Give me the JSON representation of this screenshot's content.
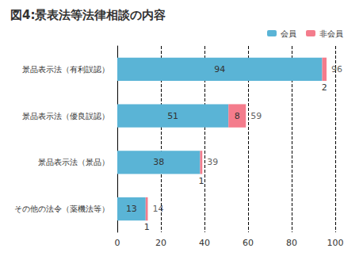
{
  "chart_data": {
    "type": "bar",
    "title": "図4:景表法等法律相談の内容",
    "orientation": "horizontal",
    "stacked": true,
    "categories": [
      "景品表示法（有利誤認）",
      "景品表示法（優良誤認）",
      "景品表示法（景品）",
      "その他の法令（薬機法等）"
    ],
    "series": [
      {
        "name": "会員",
        "color": "#5ab4d6",
        "values": [
          94,
          51,
          38,
          13
        ]
      },
      {
        "name": "非会員",
        "color": "#f47c8c",
        "values": [
          2,
          8,
          1,
          1
        ]
      }
    ],
    "totals": [
      96,
      59,
      39,
      14
    ],
    "xlim": [
      0,
      100
    ],
    "xticks": [
      0,
      20,
      40,
      60,
      80,
      100
    ],
    "grid": true,
    "legend": "top right",
    "data_labels": true
  }
}
